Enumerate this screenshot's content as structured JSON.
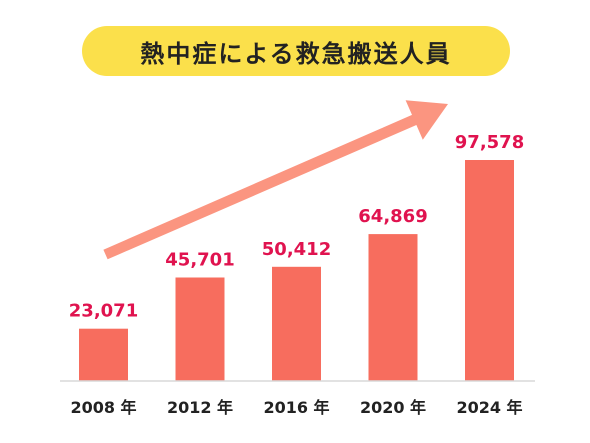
{
  "chart_data": {
    "type": "bar",
    "title": "熱中症による救急搬送人員",
    "xlabel": "",
    "ylabel": "",
    "categories": [
      "2008 年",
      "2012 年",
      "2016 年",
      "2020 年",
      "2024 年"
    ],
    "values": [
      23071,
      45701,
      50412,
      64869,
      97578
    ],
    "value_labels": [
      "23,071",
      "45,701",
      "50,412",
      "64,869",
      "97,578"
    ],
    "ylim": [
      0,
      105000
    ],
    "grid": false,
    "legend": "none",
    "annotations": [
      "trend-arrow"
    ],
    "colors": {
      "bar": "#f76d5e",
      "value_label": "#e0134f",
      "arrow": "#fb9580",
      "title_background": "#fbe04b",
      "title_text": "#222222",
      "baseline": "#d9d9d9"
    }
  }
}
